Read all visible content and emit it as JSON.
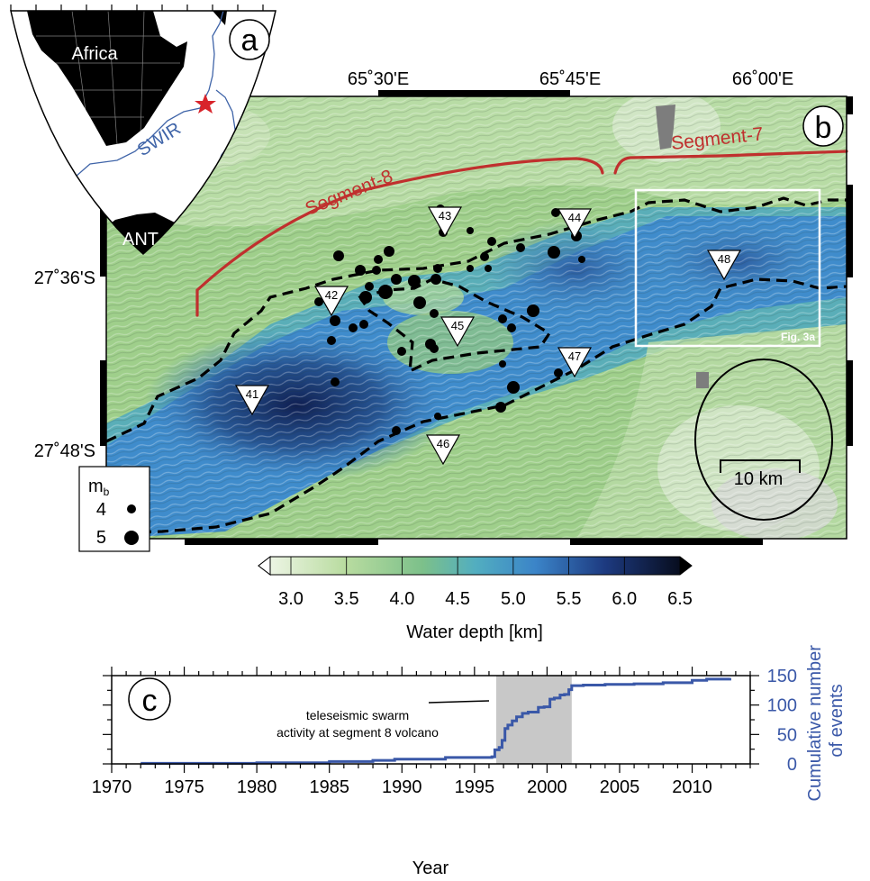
{
  "panel_a": {
    "letter": "a",
    "labels": {
      "africa": "Africa",
      "ridge": "SWIR",
      "antarctica": "ANT"
    }
  },
  "panel_b": {
    "letter": "b",
    "lon_ticks": [
      "65˚30'E",
      "65˚45'E",
      "66˚00'E"
    ],
    "lat_ticks": [
      "27˚36'S",
      "27˚48'S"
    ],
    "segments": [
      "Segment-8",
      "Segment-7"
    ],
    "obs_stations": [
      "41",
      "42",
      "43",
      "44",
      "45",
      "46",
      "47",
      "48"
    ],
    "inset_label": "Fig. 3a",
    "scale_label": "10 km",
    "legend": {
      "title": "m",
      "subscript": "b",
      "small": "4",
      "large": "5"
    },
    "colorbar": {
      "ticks": [
        "3.0",
        "3.5",
        "4.0",
        "4.5",
        "5.0",
        "5.5",
        "6.0",
        "6.5"
      ],
      "label": "Water depth [km]",
      "colors": {
        "shallow": "#f2f7ea",
        "mid_green": "#9ccc84",
        "teal": "#5fb8ba",
        "blue": "#3f8ccc",
        "deep_blue": "#1d3a82",
        "deepest": "#050a1c"
      }
    },
    "colors": {
      "segment": "#c0302e",
      "outline": "#000000"
    }
  },
  "panel_c": {
    "letter": "c",
    "annotation": [
      "teleseismic swarm",
      "activity at segment 8 volcano"
    ],
    "xlabel": "Year",
    "ylabel": [
      "Cumulative number",
      "of events"
    ],
    "line_color": "#3a58a8"
  },
  "chart_data": {
    "type": "line",
    "title": "",
    "xlabel": "Year",
    "ylabel": "Cumulative number of events",
    "xlim": [
      1970,
      2014
    ],
    "ylim": [
      0,
      150
    ],
    "x_ticks": [
      1970,
      1975,
      1980,
      1985,
      1990,
      1995,
      2000,
      2005,
      2010
    ],
    "y_ticks": [
      0,
      50,
      100,
      150
    ],
    "shaded_interval": [
      1996.5,
      2001.7
    ],
    "series": [
      {
        "x": [
          1972,
          1980,
          1985,
          1988,
          1989.5,
          1990,
          1993,
          1993.2,
          1996.2,
          1996.4,
          1996.7,
          1996.9,
          1997.1,
          1997.3,
          1997.6,
          1997.9,
          1998.3,
          1998.7,
          1999.2,
          1999.4,
          1999.8,
          2000.2,
          2000.5,
          2000.9,
          2001.2,
          2001.5,
          2001.7,
          2002.5,
          2004,
          2006,
          2008,
          2010,
          2011,
          2012.6
        ],
        "y": [
          1,
          2,
          4,
          6,
          8,
          8,
          11,
          11,
          12,
          24,
          28,
          40,
          60,
          66,
          73,
          80,
          86,
          88,
          88,
          96,
          97,
          110,
          112,
          117,
          118,
          126,
          133,
          134,
          135,
          136,
          138,
          142,
          144,
          146
        ]
      }
    ]
  }
}
